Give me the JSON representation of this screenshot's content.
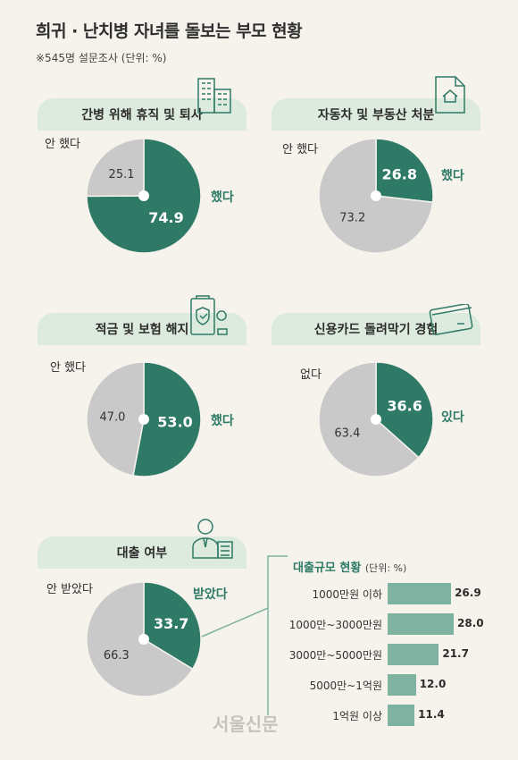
{
  "title": "희귀 · 난치병 자녀를 돌보는 부모 현황",
  "subtitle": "※545명 설문조사   (단위: %)",
  "chart_data": [
    {
      "type": "pie",
      "title": "간병 위해 휴직 및 퇴사",
      "slices": [
        {
          "label": "했다",
          "value": 74.9,
          "color": "#2f7a67"
        },
        {
          "label": "안 했다",
          "value": 25.1,
          "color": "#c9c9c9"
        }
      ]
    },
    {
      "type": "pie",
      "title": "자동차 및 부동산 처분",
      "slices": [
        {
          "label": "했다",
          "value": 26.8,
          "color": "#2f7a67"
        },
        {
          "label": "안 했다",
          "value": 73.2,
          "color": "#c9c9c9"
        }
      ]
    },
    {
      "type": "pie",
      "title": "적금 및 보험 해지",
      "slices": [
        {
          "label": "했다",
          "value": 53.0,
          "color": "#2f7a67"
        },
        {
          "label": "안 했다",
          "value": 47.0,
          "color": "#c9c9c9"
        }
      ]
    },
    {
      "type": "pie",
      "title": "신용카드 돌려막기 경험",
      "slices": [
        {
          "label": "있다",
          "value": 36.6,
          "color": "#2f7a67"
        },
        {
          "label": "없다",
          "value": 63.4,
          "color": "#c9c9c9"
        }
      ]
    },
    {
      "type": "pie",
      "title": "대출 여부",
      "slices": [
        {
          "label": "받았다",
          "value": 33.7,
          "color": "#2f7a67"
        },
        {
          "label": "안 받았다",
          "value": 66.3,
          "color": "#c9c9c9"
        }
      ]
    },
    {
      "type": "bar",
      "title": "대출규모 현황",
      "unit": "(단위: %)",
      "categories": [
        "1000만원 이하",
        "1000만~3000만원",
        "3000만~5000만원",
        "5000만~1억원",
        "1억원 이상"
      ],
      "values": [
        26.9,
        28.0,
        21.7,
        12.0,
        11.4
      ],
      "color": "#7fb2a1"
    }
  ],
  "watermark": "서울신문"
}
